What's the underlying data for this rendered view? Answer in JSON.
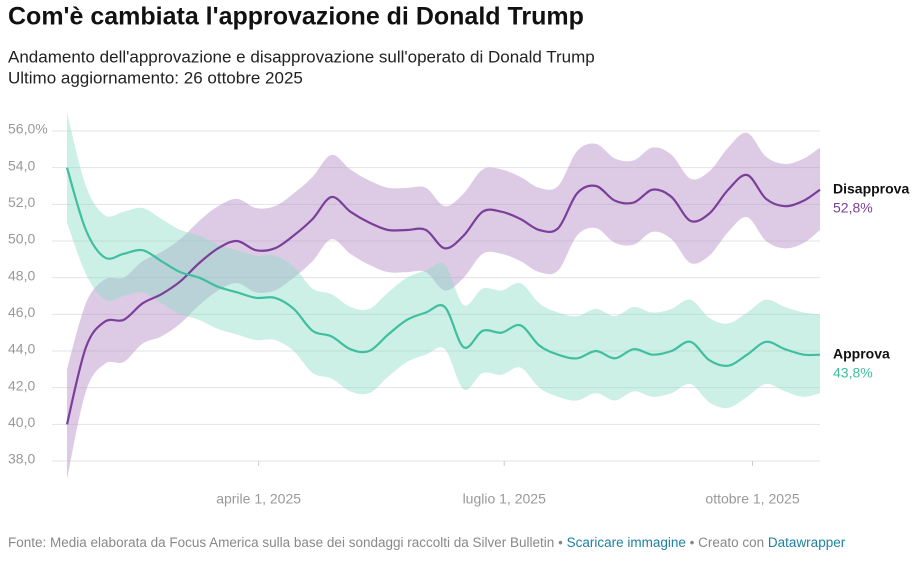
{
  "chart_data": {
    "type": "line_band",
    "title": "Com'è cambiata l'approvazione di Donald Trump",
    "subtitle": "Andamento dell'approvazione e disapprovazione sull'operato di Donald Trump",
    "updated": "Ultimo aggiornamento: 26 ottobre 2025",
    "x": [
      "2025-01-20",
      "2025-01-27",
      "2025-02-03",
      "2025-02-10",
      "2025-02-17",
      "2025-02-24",
      "2025-03-03",
      "2025-03-10",
      "2025-03-17",
      "2025-03-24",
      "2025-03-31",
      "2025-04-07",
      "2025-04-14",
      "2025-04-21",
      "2025-04-28",
      "2025-05-05",
      "2025-05-12",
      "2025-05-19",
      "2025-05-26",
      "2025-06-02",
      "2025-06-09",
      "2025-06-16",
      "2025-06-23",
      "2025-06-30",
      "2025-07-07",
      "2025-07-14",
      "2025-07-21",
      "2025-07-28",
      "2025-08-04",
      "2025-08-11",
      "2025-08-18",
      "2025-08-25",
      "2025-09-01",
      "2025-09-08",
      "2025-09-15",
      "2025-09-22",
      "2025-09-29",
      "2025-10-06",
      "2025-10-13",
      "2025-10-20",
      "2025-10-26"
    ],
    "xlim": [
      "2025-01-20",
      "2025-10-26"
    ],
    "xticks": [
      {
        "value": "2025-04-01",
        "label": "aprile 1, 2025"
      },
      {
        "value": "2025-07-01",
        "label": "luglio 1, 2025"
      },
      {
        "value": "2025-10-01",
        "label": "ottobre 1, 2025"
      }
    ],
    "ylim": [
      38,
      56
    ],
    "yticks": [
      {
        "value": 38,
        "label": "38,0"
      },
      {
        "value": 40,
        "label": "40,0"
      },
      {
        "value": 42,
        "label": "42,0"
      },
      {
        "value": 44,
        "label": "44,0"
      },
      {
        "value": 46,
        "label": "46,0"
      },
      {
        "value": 48,
        "label": "48,0"
      },
      {
        "value": 50,
        "label": "50,0"
      },
      {
        "value": 52,
        "label": "52,0"
      },
      {
        "value": 54,
        "label": "54,0"
      },
      {
        "value": 56,
        "label": "56,0%"
      }
    ],
    "grid": true,
    "series": [
      {
        "name": "Disapprova",
        "color": "#7b3f99",
        "band_color": "#b48cc6",
        "last_label": "52,8%",
        "values": [
          40.0,
          44.2,
          45.6,
          45.7,
          46.6,
          47.1,
          47.8,
          48.8,
          49.6,
          50.0,
          49.5,
          49.6,
          50.3,
          51.2,
          52.4,
          51.6,
          51.0,
          50.6,
          50.6,
          50.6,
          49.6,
          50.3,
          51.6,
          51.6,
          51.2,
          50.6,
          50.7,
          52.6,
          53.0,
          52.2,
          52.1,
          52.8,
          52.4,
          51.1,
          51.5,
          52.8,
          53.6,
          52.3,
          51.9,
          52.2,
          52.8
        ],
        "lower": [
          37.0,
          41.8,
          43.3,
          43.4,
          44.4,
          44.8,
          45.5,
          46.5,
          47.3,
          47.7,
          47.2,
          47.3,
          48.0,
          48.9,
          50.1,
          49.3,
          48.7,
          48.3,
          48.3,
          48.3,
          47.3,
          48.0,
          49.3,
          49.3,
          48.9,
          48.3,
          48.4,
          50.3,
          50.7,
          49.9,
          49.8,
          50.5,
          50.1,
          48.8,
          49.2,
          50.5,
          51.3,
          50.0,
          49.6,
          49.9,
          50.6
        ],
        "upper": [
          43.0,
          46.6,
          47.9,
          48.0,
          48.9,
          49.4,
          50.1,
          51.1,
          51.9,
          52.3,
          51.8,
          51.9,
          52.6,
          53.5,
          54.7,
          53.9,
          53.3,
          52.9,
          52.9,
          52.9,
          51.9,
          52.6,
          53.9,
          53.9,
          53.5,
          52.9,
          53.0,
          54.9,
          55.3,
          54.5,
          54.4,
          55.1,
          54.7,
          53.4,
          53.8,
          55.1,
          55.9,
          54.6,
          54.2,
          54.5,
          55.1
        ]
      },
      {
        "name": "Approva",
        "color": "#3fbf9f",
        "band_color": "#8fdcc7",
        "last_label": "43,8%",
        "values": [
          54.0,
          50.6,
          49.1,
          49.3,
          49.5,
          48.9,
          48.3,
          48.0,
          47.5,
          47.2,
          46.9,
          46.9,
          46.3,
          45.1,
          44.8,
          44.1,
          44.0,
          44.9,
          45.7,
          46.1,
          46.4,
          44.2,
          45.1,
          45.0,
          45.4,
          44.3,
          43.8,
          43.6,
          44.0,
          43.6,
          44.1,
          43.8,
          44.0,
          44.5,
          43.5,
          43.2,
          43.8,
          44.5,
          44.1,
          43.8,
          43.8
        ],
        "lower": [
          51.0,
          48.2,
          46.8,
          47.0,
          47.2,
          46.6,
          46.0,
          45.7,
          45.2,
          44.9,
          44.6,
          44.6,
          44.0,
          42.8,
          42.5,
          41.8,
          41.7,
          42.6,
          43.4,
          43.8,
          44.1,
          41.9,
          42.8,
          42.7,
          43.1,
          42.0,
          41.5,
          41.3,
          41.7,
          41.3,
          41.8,
          41.5,
          41.7,
          42.2,
          41.2,
          40.9,
          41.5,
          42.2,
          41.8,
          41.5,
          41.7
        ],
        "upper": [
          57.0,
          53.0,
          51.4,
          51.6,
          51.8,
          51.2,
          50.6,
          50.3,
          49.8,
          49.5,
          49.2,
          49.2,
          48.6,
          47.4,
          47.1,
          46.4,
          46.3,
          47.2,
          48.0,
          48.4,
          48.7,
          46.5,
          47.4,
          47.3,
          47.7,
          46.6,
          46.1,
          45.9,
          46.3,
          45.9,
          46.4,
          46.1,
          46.3,
          46.8,
          45.8,
          45.5,
          46.1,
          46.8,
          46.4,
          46.1,
          46.0
        ]
      }
    ]
  },
  "footer": {
    "source": "Fonte: Media elaborata da Focus America sulla base dei sondaggi raccolti da Silver Bulletin",
    "separator": "•",
    "download": "Scaricare immagine",
    "created": "• Creato con",
    "tool": "Datawrapper"
  }
}
